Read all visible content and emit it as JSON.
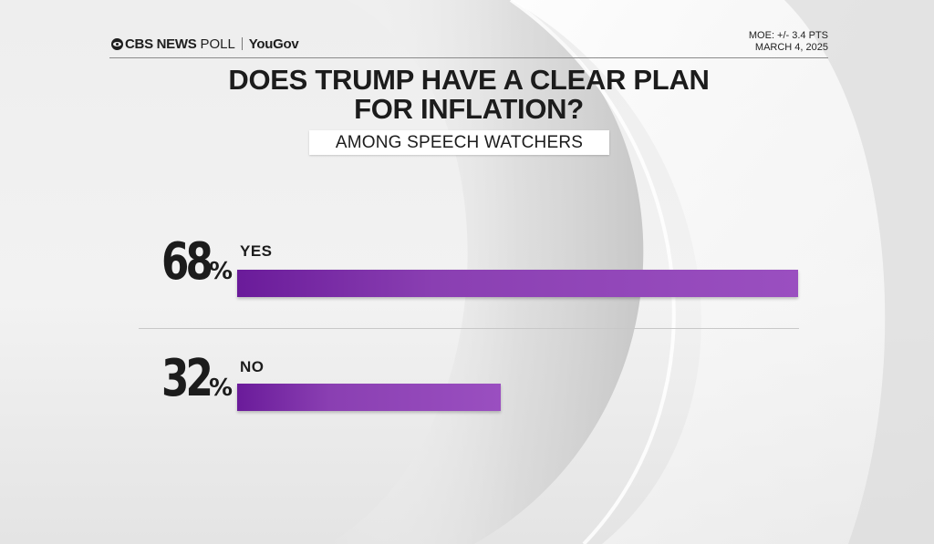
{
  "header": {
    "brand_network": "CBS NEWS",
    "brand_poll": "POLL",
    "brand_partner": "YouGov",
    "moe": "MOE: +/- 3.4 PTS",
    "date": "MARCH 4, 2025"
  },
  "chart_data": {
    "type": "bar",
    "orientation": "horizontal",
    "title": "DOES TRUMP HAVE A CLEAR PLAN FOR INFLATION?",
    "title_lines": [
      "DOES TRUMP HAVE A CLEAR PLAN",
      "FOR INFLATION?"
    ],
    "subtitle": "AMONG SPEECH WATCHERS",
    "categories": [
      "YES",
      "NO"
    ],
    "values": [
      68,
      32
    ],
    "value_labels": [
      "68",
      "32"
    ],
    "unit": "%",
    "xlim": [
      0,
      68
    ],
    "bar_color": "#8a3fb2",
    "grid": false,
    "legend": "none"
  }
}
